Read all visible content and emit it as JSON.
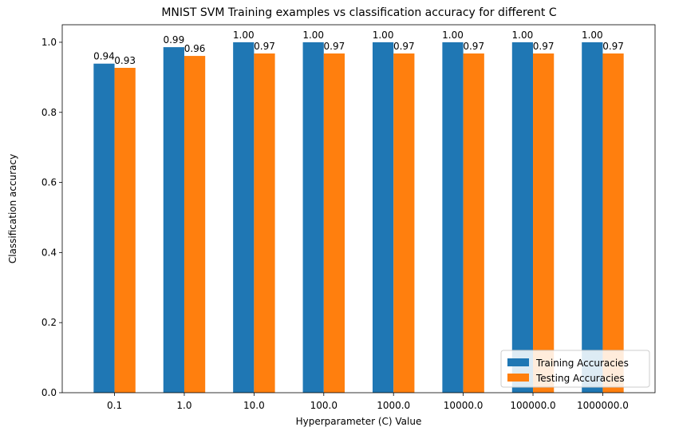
{
  "chart_data": {
    "type": "bar",
    "title": "MNIST SVM Training examples vs classification accuracy for different C",
    "xlabel": "Hyperparameter (C) Value",
    "ylabel": "Classification accuracy",
    "categories": [
      "0.1",
      "1.0",
      "10.0",
      "100.0",
      "1000.0",
      "10000.0",
      "100000.0",
      "1000000.0"
    ],
    "series": [
      {
        "name": "Training Accuracies",
        "color": "#1f77b4",
        "values": [
          0.939,
          0.986,
          1.0,
          1.0,
          1.0,
          1.0,
          1.0,
          1.0
        ],
        "labels": [
          "0.94",
          "0.99",
          "1.00",
          "1.00",
          "1.00",
          "1.00",
          "1.00",
          "1.00"
        ]
      },
      {
        "name": "Testing Accuracies",
        "color": "#ff7f0e",
        "values": [
          0.927,
          0.961,
          0.968,
          0.968,
          0.968,
          0.968,
          0.968,
          0.968
        ],
        "labels": [
          "0.93",
          "0.96",
          "0.97",
          "0.97",
          "0.97",
          "0.97",
          "0.97",
          "0.97"
        ]
      }
    ],
    "ylim": [
      0,
      1.05
    ],
    "yticks": [
      0.0,
      0.2,
      0.4,
      0.6,
      0.8,
      1.0
    ],
    "ytick_labels": [
      "0.0",
      "0.2",
      "0.4",
      "0.6",
      "0.8",
      "1.0"
    ],
    "grid": false,
    "legend_position": "lower-right"
  }
}
